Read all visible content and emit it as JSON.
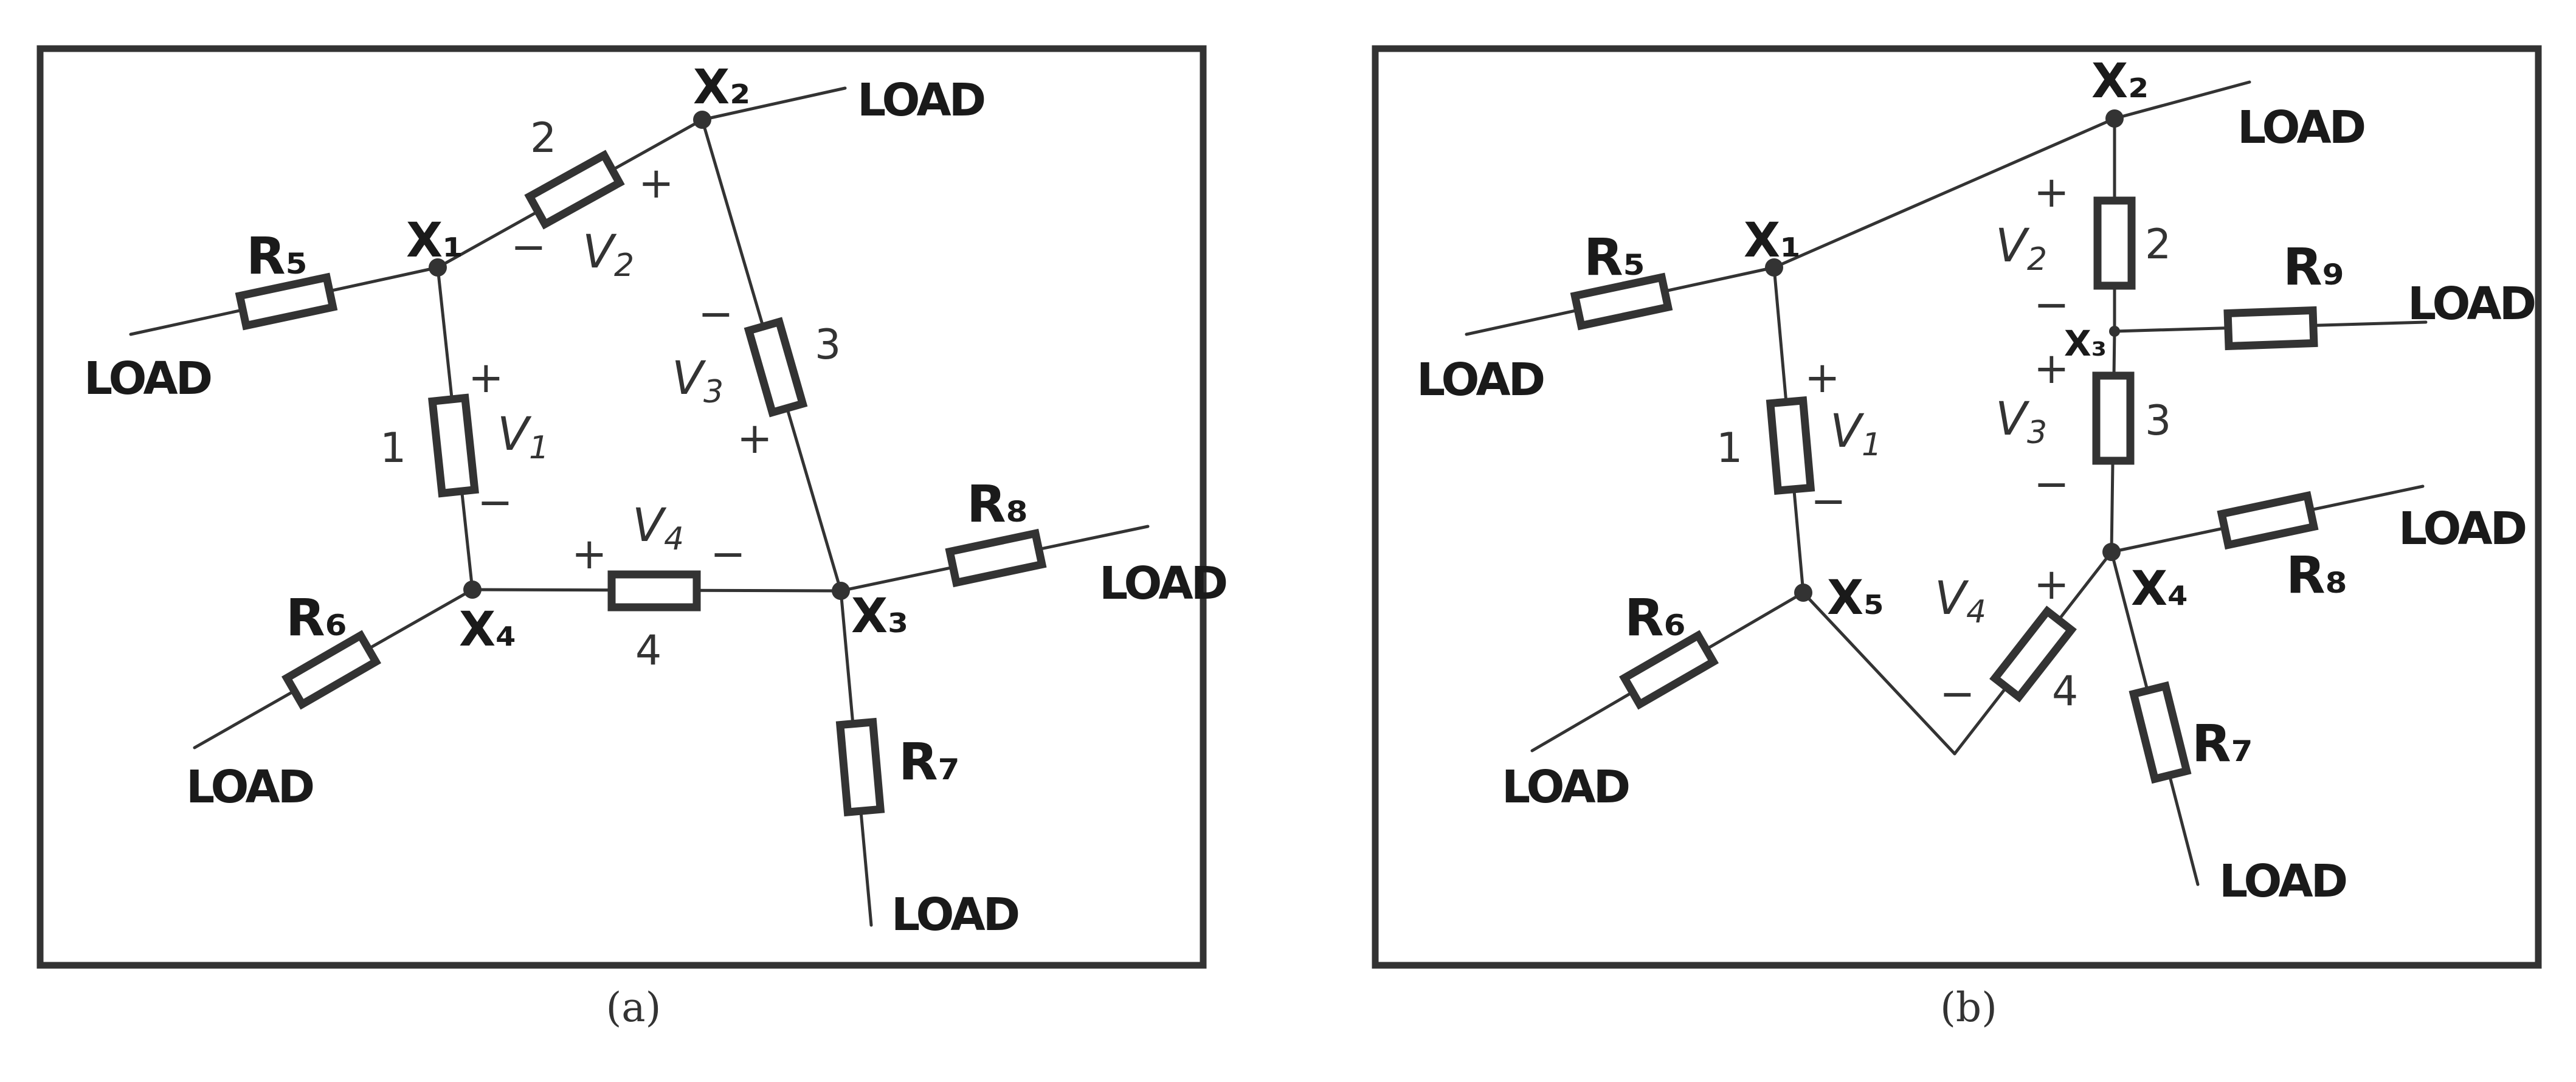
{
  "load_label": "LOAD",
  "plus": "+",
  "minus": "−",
  "v_letter": "V",
  "panel_a": {
    "caption": "(a)",
    "nodes": {
      "x1": "X₁",
      "x2": "X₂",
      "x3": "X₃",
      "x4": "X₄"
    },
    "resistor_names": {
      "r5": "R₅",
      "r6": "R₆",
      "r7": "R₇",
      "r8": "R₈"
    },
    "element_numbers": {
      "e1": "1",
      "e2": "2",
      "e3": "3",
      "e4": "4"
    },
    "voltage_subscripts": {
      "v1": "1",
      "v2": "2",
      "v3": "3",
      "v4": "4"
    }
  },
  "panel_b": {
    "caption": "(b)",
    "nodes": {
      "x1": "X₁",
      "x2": "X₂",
      "x3": "X₃",
      "x4": "X₄",
      "x5": "X₅"
    },
    "resistor_names": {
      "r5": "R₅",
      "r6": "R₆",
      "r7": "R₇",
      "r8": "R₈",
      "r9": "R₉"
    },
    "element_numbers": {
      "e1": "1",
      "e2": "2",
      "e3": "3",
      "e4": "4"
    },
    "voltage_subscripts": {
      "v1": "1",
      "v2": "2",
      "v3": "3",
      "v4": "4"
    }
  }
}
